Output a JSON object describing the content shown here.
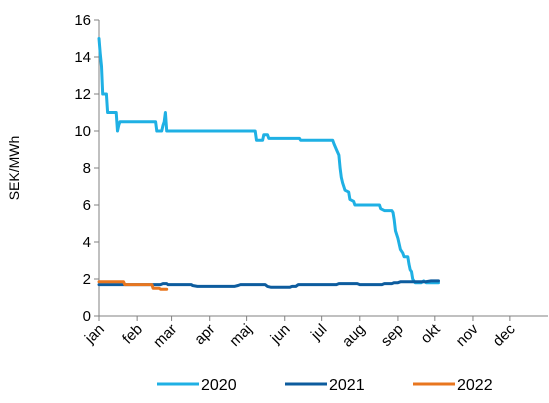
{
  "chart_data": {
    "type": "line",
    "title": "",
    "xlabel": "",
    "ylabel": "SEK/MWh",
    "ylim": [
      0,
      16
    ],
    "yticks": [
      0,
      2,
      4,
      6,
      8,
      10,
      12,
      14,
      16
    ],
    "xlim": [
      0,
      365
    ],
    "month_labels": [
      "jan",
      "feb",
      "mar",
      "apr",
      "maj",
      "jun",
      "jul",
      "aug",
      "sep",
      "okt",
      "nov",
      "dec"
    ],
    "month_starts": [
      0,
      31,
      59,
      90,
      120,
      151,
      181,
      212,
      243,
      273,
      304,
      334
    ],
    "grid": false,
    "legend_position": "bottom",
    "series": [
      {
        "name": "2020",
        "color": "#1fb0e4",
        "points": [
          [
            0,
            15
          ],
          [
            1,
            14.2
          ],
          [
            2,
            13.5
          ],
          [
            3,
            12
          ],
          [
            4,
            12
          ],
          [
            6,
            12
          ],
          [
            7,
            11
          ],
          [
            10,
            11
          ],
          [
            14,
            11
          ],
          [
            15,
            10
          ],
          [
            16,
            10.3
          ],
          [
            17,
            10.5
          ],
          [
            40,
            10.5
          ],
          [
            46,
            10.5
          ],
          [
            47,
            10
          ],
          [
            51,
            10
          ],
          [
            52,
            10.3
          ],
          [
            53,
            10.5
          ],
          [
            54,
            11
          ],
          [
            55,
            10
          ],
          [
            60,
            10
          ],
          [
            70,
            10
          ],
          [
            100,
            10
          ],
          [
            127,
            10
          ],
          [
            128,
            9.5
          ],
          [
            133,
            9.5
          ],
          [
            134,
            9.8
          ],
          [
            137,
            9.8
          ],
          [
            138,
            9.6
          ],
          [
            140,
            9.6
          ],
          [
            163,
            9.6
          ],
          [
            164,
            9.5
          ],
          [
            190,
            9.5
          ],
          [
            191,
            9.3
          ],
          [
            193,
            9
          ],
          [
            195,
            8.7
          ],
          [
            196,
            8
          ],
          [
            197,
            7.5
          ],
          [
            198,
            7.2
          ],
          [
            200,
            6.8
          ],
          [
            203,
            6.7
          ],
          [
            204,
            6.3
          ],
          [
            207,
            6.2
          ],
          [
            208,
            6
          ],
          [
            228,
            6
          ],
          [
            229,
            5.8
          ],
          [
            232,
            5.7
          ],
          [
            238,
            5.7
          ],
          [
            239,
            5.6
          ],
          [
            240,
            5.2
          ],
          [
            241,
            4.6
          ],
          [
            243,
            4.2
          ],
          [
            245,
            3.6
          ],
          [
            247,
            3.4
          ],
          [
            248,
            3.2
          ],
          [
            251,
            3.2
          ],
          [
            252,
            2.8
          ],
          [
            253,
            2.5
          ],
          [
            254,
            2.4
          ],
          [
            255,
            2
          ],
          [
            256,
            1.9
          ],
          [
            257,
            1.8
          ],
          [
            262,
            1.8
          ],
          [
            264,
            1.9
          ],
          [
            266,
            1.8
          ],
          [
            275,
            1.8
          ],
          [
            276,
            1.8
          ]
        ]
      },
      {
        "name": "2021",
        "color": "#0d5c9e",
        "points": [
          [
            0,
            1.7
          ],
          [
            30,
            1.7
          ],
          [
            50,
            1.7
          ],
          [
            52,
            1.75
          ],
          [
            55,
            1.75
          ],
          [
            56,
            1.7
          ],
          [
            75,
            1.7
          ],
          [
            76,
            1.65
          ],
          [
            80,
            1.6
          ],
          [
            110,
            1.6
          ],
          [
            113,
            1.65
          ],
          [
            115,
            1.7
          ],
          [
            135,
            1.7
          ],
          [
            137,
            1.6
          ],
          [
            140,
            1.55
          ],
          [
            155,
            1.55
          ],
          [
            157,
            1.6
          ],
          [
            160,
            1.6
          ],
          [
            162,
            1.7
          ],
          [
            193,
            1.7
          ],
          [
            195,
            1.75
          ],
          [
            210,
            1.75
          ],
          [
            212,
            1.7
          ],
          [
            230,
            1.7
          ],
          [
            232,
            1.75
          ],
          [
            238,
            1.75
          ],
          [
            240,
            1.8
          ],
          [
            243,
            1.8
          ],
          [
            245,
            1.85
          ],
          [
            265,
            1.85
          ],
          [
            270,
            1.9
          ],
          [
            276,
            1.9
          ]
        ]
      },
      {
        "name": "2022",
        "color": "#e8761f",
        "points": [
          [
            0,
            1.85
          ],
          [
            20,
            1.85
          ],
          [
            21,
            1.7
          ],
          [
            43,
            1.7
          ],
          [
            44,
            1.5
          ],
          [
            49,
            1.5
          ],
          [
            50,
            1.45
          ],
          [
            55,
            1.45
          ]
        ]
      }
    ]
  }
}
